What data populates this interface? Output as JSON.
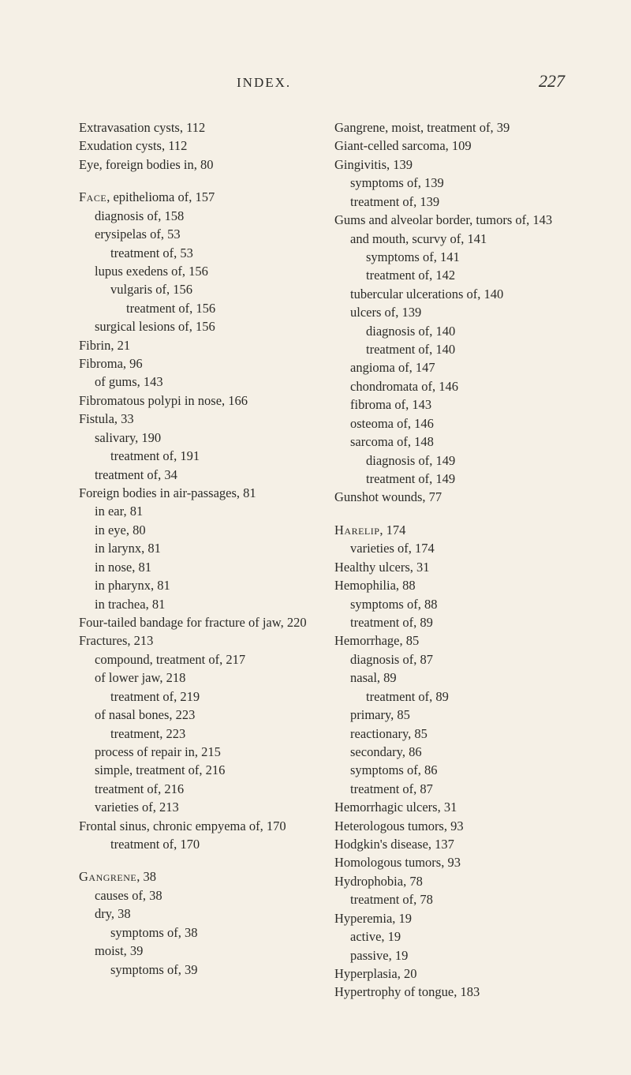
{
  "header": {
    "title": "INDEX.",
    "page_number": "227"
  },
  "left_col": [
    {
      "t": "Extravasation cysts, 112",
      "lvl": 0
    },
    {
      "t": "Exudation cysts, 112",
      "lvl": 0
    },
    {
      "t": "Eye, foreign bodies in, 80",
      "lvl": 0
    },
    {
      "gap": true
    },
    {
      "t": "Face, epithelioma of, 157",
      "lvl": 0,
      "sc_prefix": 4
    },
    {
      "t": "diagnosis of, 158",
      "lvl": 1
    },
    {
      "t": "erysipelas of, 53",
      "lvl": 1
    },
    {
      "t": "treatment of, 53",
      "lvl": 2
    },
    {
      "t": "lupus exedens of, 156",
      "lvl": 1
    },
    {
      "t": "vulgaris of, 156",
      "lvl": 2
    },
    {
      "t": "treatment of, 156",
      "lvl": 3
    },
    {
      "t": "surgical lesions of, 156",
      "lvl": 1
    },
    {
      "t": "Fibrin, 21",
      "lvl": 0
    },
    {
      "t": "Fibroma, 96",
      "lvl": 0
    },
    {
      "t": "of gums, 143",
      "lvl": 1
    },
    {
      "t": "Fibromatous polypi in nose, 166",
      "lvl": 0
    },
    {
      "t": "Fistula, 33",
      "lvl": 0
    },
    {
      "t": "salivary, 190",
      "lvl": 1
    },
    {
      "t": "treatment of, 191",
      "lvl": 2
    },
    {
      "t": "treatment of, 34",
      "lvl": 1
    },
    {
      "t": "Foreign bodies in air-passages, 81",
      "lvl": 0
    },
    {
      "t": "in ear, 81",
      "lvl": 1
    },
    {
      "t": "in eye, 80",
      "lvl": 1
    },
    {
      "t": "in larynx, 81",
      "lvl": 1
    },
    {
      "t": "in nose, 81",
      "lvl": 1
    },
    {
      "t": "in pharynx, 81",
      "lvl": 1
    },
    {
      "t": "in trachea, 81",
      "lvl": 1
    },
    {
      "t": "Four-tailed bandage for fracture of jaw, 220",
      "lvl": 0
    },
    {
      "t": "Fractures, 213",
      "lvl": 0
    },
    {
      "t": "compound, treatment of, 217",
      "lvl": 1
    },
    {
      "t": "of lower jaw, 218",
      "lvl": 1
    },
    {
      "t": "treatment of, 219",
      "lvl": 2
    },
    {
      "t": "of nasal bones, 223",
      "lvl": 1
    },
    {
      "t": "treatment, 223",
      "lvl": 2
    },
    {
      "t": "process of repair in, 215",
      "lvl": 1
    },
    {
      "t": "simple, treatment of, 216",
      "lvl": 1
    },
    {
      "t": "treatment of, 216",
      "lvl": 1
    },
    {
      "t": "varieties of, 213",
      "lvl": 1
    },
    {
      "t": "Frontal sinus, chronic empyema of, 170",
      "lvl": 0
    },
    {
      "t": "treatment of, 170",
      "lvl": 2
    },
    {
      "gap": true
    },
    {
      "t": "Gangrene, 38",
      "lvl": 0,
      "sc_prefix": 8
    },
    {
      "t": "causes of, 38",
      "lvl": 1
    },
    {
      "t": "dry, 38",
      "lvl": 1
    },
    {
      "t": "symptoms of, 38",
      "lvl": 2
    },
    {
      "t": "moist, 39",
      "lvl": 1
    },
    {
      "t": "symptoms of, 39",
      "lvl": 2
    }
  ],
  "right_col": [
    {
      "t": "Gangrene, moist, treatment of, 39",
      "lvl": 0
    },
    {
      "t": "Giant-celled sarcoma, 109",
      "lvl": 0
    },
    {
      "t": "Gingivitis, 139",
      "lvl": 0
    },
    {
      "t": "symptoms of, 139",
      "lvl": 1
    },
    {
      "t": "treatment of, 139",
      "lvl": 1
    },
    {
      "t": "Gums and alveolar border, tumors of, 143",
      "lvl": 0
    },
    {
      "t": "and mouth, scurvy of, 141",
      "lvl": 1
    },
    {
      "t": "symptoms of, 141",
      "lvl": 2
    },
    {
      "t": "treatment of, 142",
      "lvl": 2
    },
    {
      "t": "tubercular ulcerations of, 140",
      "lvl": 1
    },
    {
      "t": "ulcers of, 139",
      "lvl": 1
    },
    {
      "t": "diagnosis of, 140",
      "lvl": 2
    },
    {
      "t": "treatment of, 140",
      "lvl": 2
    },
    {
      "t": "angioma of, 147",
      "lvl": 1
    },
    {
      "t": "chondromata of, 146",
      "lvl": 1
    },
    {
      "t": "fibroma of, 143",
      "lvl": 1
    },
    {
      "t": "osteoma of, 146",
      "lvl": 1
    },
    {
      "t": "sarcoma of, 148",
      "lvl": 1
    },
    {
      "t": "diagnosis of, 149",
      "lvl": 2
    },
    {
      "t": "treatment of, 149",
      "lvl": 2
    },
    {
      "t": "Gunshot wounds, 77",
      "lvl": 0
    },
    {
      "gap": true
    },
    {
      "t": "Harelip, 174",
      "lvl": 0,
      "sc_prefix": 7
    },
    {
      "t": "varieties of, 174",
      "lvl": 1
    },
    {
      "t": "Healthy ulcers, 31",
      "lvl": 0
    },
    {
      "t": "Hemophilia, 88",
      "lvl": 0
    },
    {
      "t": "symptoms of, 88",
      "lvl": 1
    },
    {
      "t": "treatment of, 89",
      "lvl": 1
    },
    {
      "t": "Hemorrhage, 85",
      "lvl": 0
    },
    {
      "t": "diagnosis of, 87",
      "lvl": 1
    },
    {
      "t": "nasal, 89",
      "lvl": 1
    },
    {
      "t": "treatment of, 89",
      "lvl": 2
    },
    {
      "t": "primary, 85",
      "lvl": 1
    },
    {
      "t": "reactionary, 85",
      "lvl": 1
    },
    {
      "t": "secondary, 86",
      "lvl": 1
    },
    {
      "t": "symptoms of, 86",
      "lvl": 1
    },
    {
      "t": "treatment of, 87",
      "lvl": 1
    },
    {
      "t": "Hemorrhagic ulcers, 31",
      "lvl": 0
    },
    {
      "t": "Heterologous tumors, 93",
      "lvl": 0
    },
    {
      "t": "Hodgkin's disease, 137",
      "lvl": 0
    },
    {
      "t": "Homologous tumors, 93",
      "lvl": 0
    },
    {
      "t": "Hydrophobia, 78",
      "lvl": 0
    },
    {
      "t": "treatment of, 78",
      "lvl": 1
    },
    {
      "t": "Hyperemia, 19",
      "lvl": 0
    },
    {
      "t": "active, 19",
      "lvl": 1
    },
    {
      "t": "passive, 19",
      "lvl": 1
    },
    {
      "t": "Hyperplasia, 20",
      "lvl": 0
    },
    {
      "t": "Hypertrophy of tongue, 183",
      "lvl": 0
    }
  ]
}
